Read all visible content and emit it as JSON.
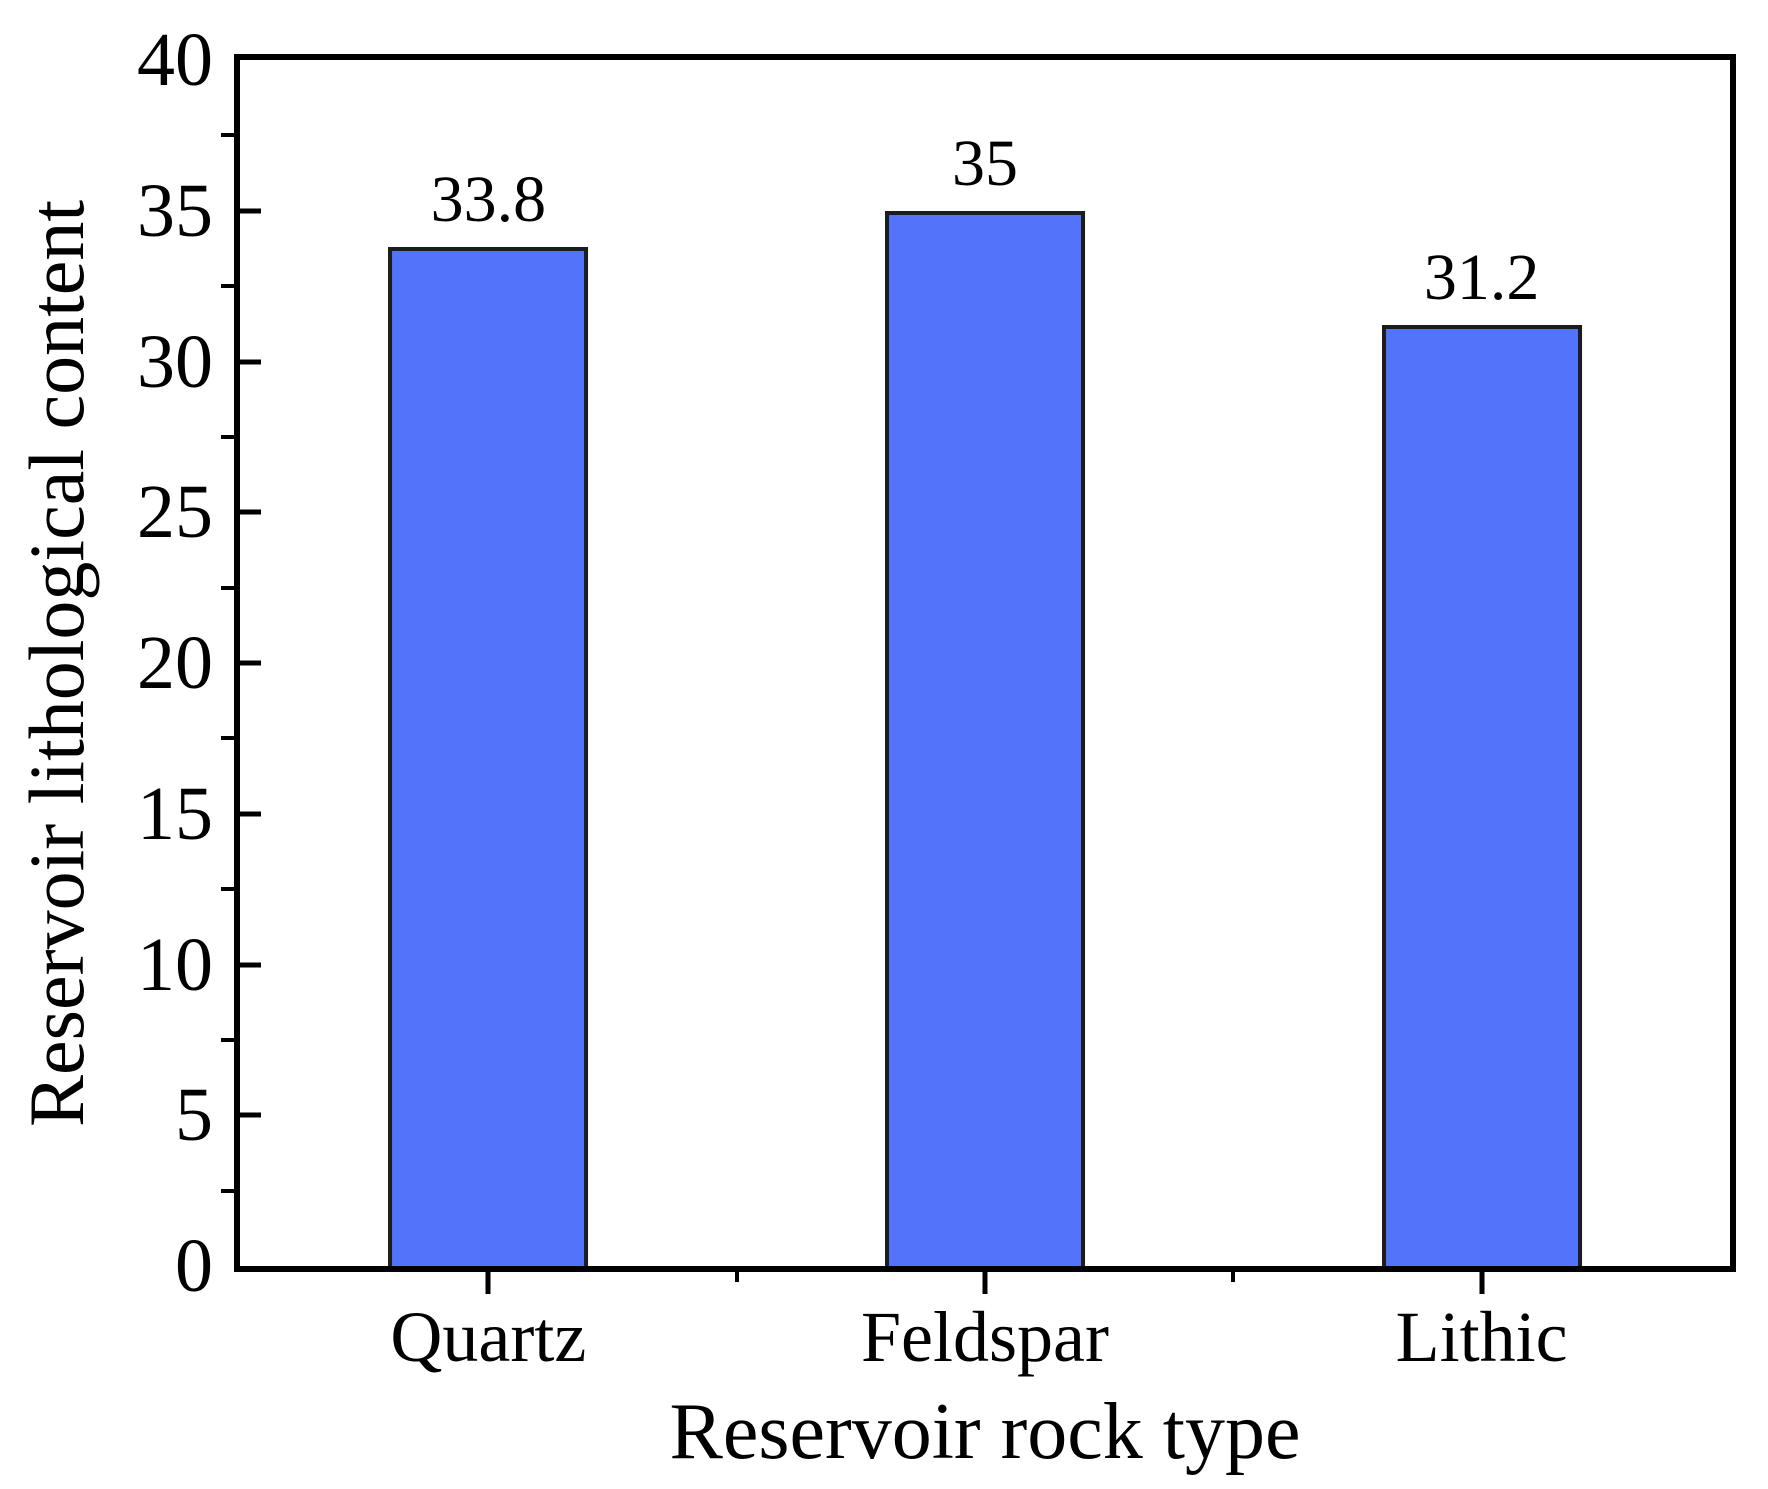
{
  "figure": {
    "background_color": "#ffffff",
    "text_color": "#000000"
  },
  "chart_data": {
    "type": "bar",
    "title": "",
    "categories": [
      "Quartz",
      "Feldspar",
      "Lithic"
    ],
    "values": [
      33.8,
      35,
      31.2
    ],
    "value_labels": [
      "33.8",
      "35",
      "31.2"
    ],
    "xlabel": "Reservoir rock type",
    "ylabel": "Reservoir lithological content",
    "ylim": [
      0,
      40
    ],
    "y_major_tick_step": 5,
    "y_minor_tick_step": 2.5,
    "y_tick_labels": [
      "0",
      "5",
      "10",
      "15",
      "20",
      "25",
      "30",
      "35",
      "40"
    ],
    "grid": false,
    "legend_position": "none",
    "bar_fill_color": "#5273fa",
    "bar_border_color": "#1c1c1c",
    "axis_color": "#000000",
    "bar_width_fraction": 0.1342
  }
}
